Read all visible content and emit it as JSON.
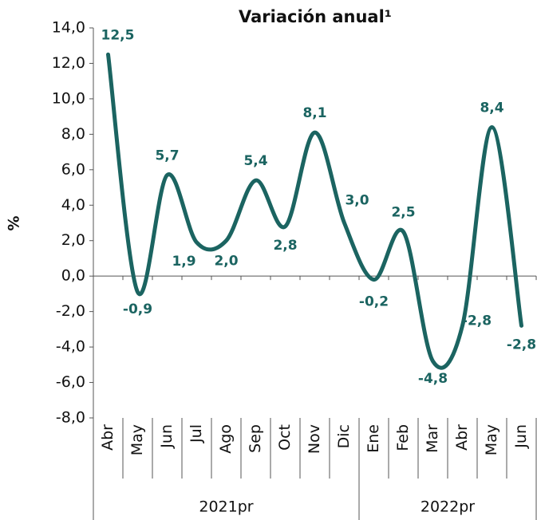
{
  "chart_data": {
    "type": "line",
    "title": "Variación anual¹",
    "y_label": "%",
    "categories": [
      "Abr",
      "May",
      "Jun",
      "Jul",
      "Ago",
      "Sep",
      "Oct",
      "Nov",
      "Dic",
      "Ene",
      "Feb",
      "Mar",
      "Abr",
      "May",
      "Jun"
    ],
    "groups": [
      {
        "label": "2021pr",
        "count": 9
      },
      {
        "label": "2022pr",
        "count": 6
      }
    ],
    "series": [
      {
        "name": "Variación anual",
        "color": "#1b6461",
        "values": [
          12.5,
          -0.9,
          5.7,
          1.9,
          2.0,
          5.4,
          2.8,
          8.1,
          3.0,
          -0.2,
          2.5,
          -4.8,
          -2.8,
          8.4,
          -2.8
        ],
        "value_labels": [
          "12,5",
          "-0,9",
          "5,7",
          "1,9",
          "2,0",
          "5,4",
          "2,8",
          "8,1",
          "3,0",
          "-0,2",
          "2,5",
          "-4,8",
          "-2,8",
          "8,4",
          "-2,8"
        ]
      }
    ],
    "ylim": [
      -8,
      14
    ],
    "yticks": [
      {
        "value": -8,
        "label": "-8,0"
      },
      {
        "value": -6,
        "label": "-6,0"
      },
      {
        "value": -4,
        "label": "-4,0"
      },
      {
        "value": -2,
        "label": "-2,0"
      },
      {
        "value": 0,
        "label": "0,0"
      },
      {
        "value": 2,
        "label": "2,0"
      },
      {
        "value": 4,
        "label": "4,0"
      },
      {
        "value": 6,
        "label": "6,0"
      },
      {
        "value": 8,
        "label": "8,0"
      },
      {
        "value": 10,
        "label": "10,0"
      },
      {
        "value": 12,
        "label": "12,0"
      },
      {
        "value": 14,
        "label": "14,0"
      }
    ]
  }
}
